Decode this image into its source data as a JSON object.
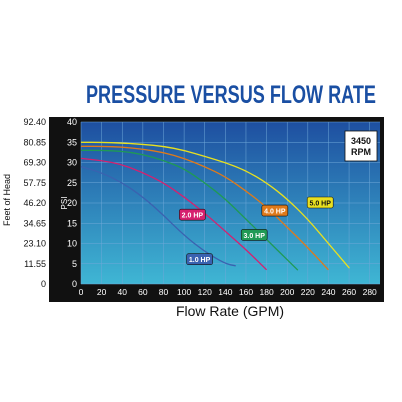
{
  "chart_data": {
    "type": "line",
    "title": "PRESSURE VERSUS FLOW RATE",
    "xlabel": "Flow Rate (GPM)",
    "ylabel": "PSI",
    "y2label": "Feet of Head",
    "xlim": [
      0,
      290
    ],
    "ylim": [
      0,
      40
    ],
    "x_ticks": [
      "0",
      "20",
      "40",
      "60",
      "80",
      "100",
      "120",
      "140",
      "160",
      "180",
      "200",
      "220",
      "240",
      "260",
      "280"
    ],
    "y_ticks": [
      "0",
      "5",
      "10",
      "15",
      "20",
      "25",
      "30",
      "35",
      "40"
    ],
    "head_ticks": [
      "0",
      "11.55",
      "23.10",
      "34.65",
      "46.20",
      "57.75",
      "69.30",
      "80.85",
      "92.40"
    ],
    "rpm_label": "3450\nRPM",
    "rpm_line1": "3450",
    "rpm_line2": "RPM",
    "grid": true,
    "colors": {
      "title": "#1a4fa3",
      "plot_bg_top": "#1e4fa0",
      "plot_bg_bottom": "#3fb6d4",
      "frame": "#111111",
      "grid": "#6fa8d8"
    },
    "series": [
      {
        "name": "1.0 HP",
        "color": "#3a62b0",
        "x": [
          0,
          20,
          40,
          60,
          80,
          100,
          120,
          140,
          150
        ],
        "y": [
          29,
          27.5,
          25,
          21.5,
          17,
          12,
          8,
          5,
          4.5
        ],
        "label_at": [
          115,
          6
        ]
      },
      {
        "name": "2.0 HP",
        "color": "#d6206f",
        "x": [
          0,
          20,
          40,
          60,
          80,
          100,
          120,
          140,
          160,
          180
        ],
        "y": [
          31,
          30.5,
          29.5,
          27.5,
          25,
          21.5,
          17.5,
          13,
          8.5,
          3.5
        ],
        "label_at": [
          108,
          17
        ]
      },
      {
        "name": "3.0 HP",
        "color": "#1f9a55",
        "x": [
          0,
          20,
          40,
          60,
          80,
          100,
          120,
          140,
          160,
          180,
          200,
          210
        ],
        "y": [
          33,
          33,
          32.8,
          32,
          30.5,
          28.5,
          25,
          21,
          16,
          11,
          6,
          3.5
        ],
        "label_at": [
          168,
          12
        ]
      },
      {
        "name": "4.0 HP",
        "color": "#e07a1a",
        "x": [
          0,
          20,
          40,
          60,
          80,
          100,
          120,
          140,
          160,
          180,
          200,
          220,
          240
        ],
        "y": [
          34,
          34,
          33.8,
          33.3,
          32.5,
          31,
          29,
          26.5,
          23,
          19,
          14,
          9,
          3.5
        ],
        "label_at": [
          188,
          18
        ]
      },
      {
        "name": "5.0 HP",
        "color": "#e8e020",
        "x": [
          0,
          20,
          40,
          60,
          80,
          100,
          120,
          140,
          160,
          180,
          200,
          220,
          240,
          260
        ],
        "y": [
          35,
          35,
          34.8,
          34.5,
          34,
          33,
          31.5,
          30,
          28,
          25,
          21,
          16,
          10,
          4
        ],
        "label_at": [
          232,
          20
        ]
      }
    ]
  }
}
